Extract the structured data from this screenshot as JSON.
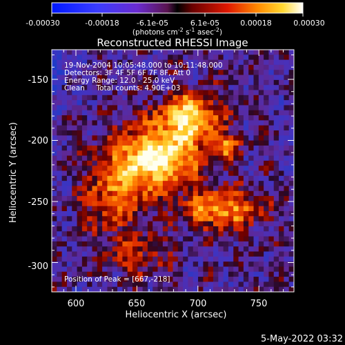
{
  "colorbar": {
    "ticks": [
      "-0.00030",
      "-0.00018",
      "-6.1e-05",
      "6.1e-05",
      "0.00018",
      "0.00030"
    ],
    "units_prefix": "(photons cm",
    "units_exp1": "-2",
    "units_mid1": " s",
    "units_exp2": "-1",
    "units_mid2": " asec",
    "units_exp3": "-2",
    "units_suffix": ")"
  },
  "plot": {
    "title": "Reconstructed RHESSI Image",
    "info_lines": [
      "19-Nov-2004 10:05:48.000 to 10:11:48.000",
      "Detectors: 3F 4F 5F 6F 7F 8F, Att 0",
      "Energy Range: 12.0 - 25.0 keV",
      "Clean     Total counts: 4.90E+03"
    ],
    "peak_label": "Position of Peak = [667,-218]",
    "xlabel": "Heliocentric X (arcsec)",
    "ylabel": "Heliocentric Y (arcsec)",
    "x_ticks": [
      "600",
      "650",
      "700",
      "750"
    ],
    "y_ticks": [
      "-150",
      "-200",
      "-250",
      "-300"
    ]
  },
  "footer": {
    "timestamp": "5-May-2022 03:32"
  }
}
